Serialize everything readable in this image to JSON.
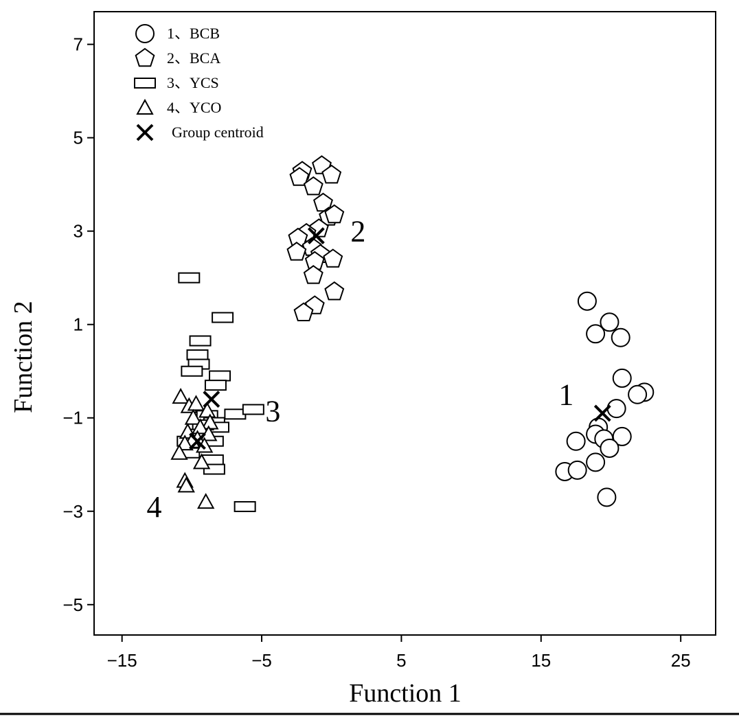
{
  "chart_data": {
    "type": "scatter",
    "xlabel": "Function 1",
    "ylabel": "Function 2",
    "xlim": [
      -17,
      27.5
    ],
    "ylim": [
      -5.65,
      7.7
    ],
    "xticks": [
      -15,
      -5,
      5,
      15,
      25
    ],
    "yticks": [
      7,
      5,
      3,
      1,
      -1,
      -3,
      -5
    ],
    "xtick_labels": [
      "−15",
      "−5",
      "5",
      "15",
      "25"
    ],
    "ytick_labels": [
      "7",
      "5",
      "3",
      "1",
      "−1",
      "−3",
      "−5"
    ],
    "legend": {
      "position": "top-left",
      "entries": [
        {
          "marker": "circle",
          "label": "1、BCB"
        },
        {
          "marker": "pentagon",
          "label": "2、BCA"
        },
        {
          "marker": "rectangle",
          "label": "3、YCS"
        },
        {
          "marker": "triangle",
          "label": "4、YCO"
        },
        {
          "marker": "cross",
          "label": "Group centroid"
        }
      ]
    },
    "series": [
      {
        "name": "1、BCB",
        "marker": "circle",
        "points": [
          [
            18.3,
            1.5
          ],
          [
            19.9,
            1.05
          ],
          [
            18.9,
            0.8
          ],
          [
            20.7,
            0.72
          ],
          [
            20.8,
            -0.15
          ],
          [
            22.4,
            -0.45
          ],
          [
            21.9,
            -0.5
          ],
          [
            20.4,
            -0.8
          ],
          [
            19.1,
            -1.2
          ],
          [
            18.9,
            -1.35
          ],
          [
            20.8,
            -1.4
          ],
          [
            19.5,
            -1.45
          ],
          [
            17.5,
            -1.5
          ],
          [
            19.9,
            -1.65
          ],
          [
            18.9,
            -1.95
          ],
          [
            16.7,
            -2.15
          ],
          [
            17.6,
            -2.12
          ],
          [
            19.7,
            -2.7
          ]
        ]
      },
      {
        "name": "2、BCA",
        "marker": "pentagon",
        "points": [
          [
            -2.1,
            4.28
          ],
          [
            -2.3,
            4.15
          ],
          [
            -0.7,
            4.4
          ],
          [
            0,
            4.2
          ],
          [
            -1.3,
            3.95
          ],
          [
            -0.6,
            3.6
          ],
          [
            -0.2,
            3.3
          ],
          [
            0.2,
            3.35
          ],
          [
            -0.9,
            3.05
          ],
          [
            -1.8,
            2.95
          ],
          [
            -2.4,
            2.85
          ],
          [
            -1.4,
            2.65
          ],
          [
            -2.5,
            2.55
          ],
          [
            -0.8,
            2.5
          ],
          [
            0.1,
            2.4
          ],
          [
            -1.2,
            2.35
          ],
          [
            -1.3,
            2.05
          ],
          [
            0.2,
            1.7
          ],
          [
            -1.2,
            1.4
          ],
          [
            -2,
            1.25
          ]
        ]
      },
      {
        "name": "3、YCS",
        "marker": "rectangle",
        "points": [
          [
            -10.2,
            2.0
          ],
          [
            -7.8,
            1.15
          ],
          [
            -9.4,
            0.65
          ],
          [
            -9.6,
            0.35
          ],
          [
            -9.5,
            0.15
          ],
          [
            -10,
            0
          ],
          [
            -8,
            -0.1
          ],
          [
            -8.3,
            -0.3
          ],
          [
            -6.9,
            -0.92
          ],
          [
            -5.6,
            -0.82
          ],
          [
            -8.9,
            -0.95
          ],
          [
            -8.4,
            -1.1
          ],
          [
            -8.1,
            -1.2
          ],
          [
            -9.2,
            -1.15
          ],
          [
            -9.5,
            -1.35
          ],
          [
            -10.3,
            -1.5
          ],
          [
            -8.5,
            -1.5
          ],
          [
            -10.2,
            -1.75
          ],
          [
            -8.5,
            -1.9
          ],
          [
            -8.4,
            -2.1
          ],
          [
            -6.2,
            -2.9
          ]
        ]
      },
      {
        "name": "4、YCO",
        "marker": "triangle",
        "points": [
          [
            -10.8,
            -0.55
          ],
          [
            -10.2,
            -0.75
          ],
          [
            -9.7,
            -0.7
          ],
          [
            -8.9,
            -0.85
          ],
          [
            -9.9,
            -1
          ],
          [
            -8.7,
            -1.1
          ],
          [
            -9.4,
            -1.2
          ],
          [
            -10.3,
            -1.3
          ],
          [
            -8.8,
            -1.35
          ],
          [
            -9.6,
            -1.45
          ],
          [
            -10,
            -1.5
          ],
          [
            -10.5,
            -1.55
          ],
          [
            -9.1,
            -1.6
          ],
          [
            -10.9,
            -1.75
          ],
          [
            -9.3,
            -1.95
          ],
          [
            -10.5,
            -2.35
          ],
          [
            -10.4,
            -2.45
          ],
          [
            -9,
            -2.8
          ]
        ]
      }
    ],
    "centroids": [
      {
        "x": 19.4,
        "y": -0.9
      },
      {
        "x": -1.1,
        "y": 2.9
      },
      {
        "x": -8.6,
        "y": -0.6
      },
      {
        "x": -9.6,
        "y": -1.5
      }
    ],
    "group_labels": [
      {
        "text": "1",
        "x": 16.8,
        "y": -0.5
      },
      {
        "text": "2",
        "x": 1.9,
        "y": 3.0
      },
      {
        "text": "3",
        "x": -4.2,
        "y": -0.85
      },
      {
        "text": "4",
        "x": -12.7,
        "y": -2.9
      }
    ]
  }
}
